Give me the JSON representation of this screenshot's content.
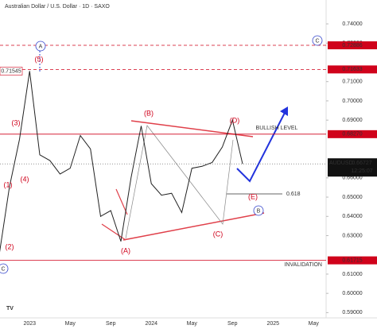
{
  "chart_data": {
    "type": "line",
    "title": "Australian Dollar / U.S. Dollar · 1D · SAXO",
    "categories": [
      null,
      null,
      null,
      "2023",
      null,
      null,
      null,
      "May",
      null,
      null,
      null,
      "Sep",
      null,
      null,
      null,
      "2024",
      null,
      null,
      null,
      "May",
      null,
      null,
      null,
      "Sep",
      null,
      null,
      null,
      "2025",
      null,
      null,
      null,
      "May",
      null
    ],
    "series": [
      {
        "name": "AUDUSD",
        "color": "#222222",
        "values": [
          0.62,
          0.655,
          0.68,
          0.7155,
          0.672,
          0.669,
          0.662,
          0.665,
          0.682,
          0.675,
          0.64,
          0.643,
          0.627,
          0.66,
          0.687,
          0.657,
          0.651,
          0.652,
          0.642,
          0.665,
          0.666,
          0.668,
          0.676,
          0.69,
          0.66727,
          null,
          null,
          null,
          null,
          null,
          null,
          null,
          null
        ]
      }
    ],
    "ylim": [
      0.58727,
      0.7524
    ],
    "yticks": [
      {
        "value": 0.74,
        "label": "0.74000"
      },
      {
        "value": 0.73,
        "label": "0.73000"
      },
      {
        "value": 0.71,
        "label": "0.71000"
      },
      {
        "value": 0.7,
        "label": "0.70000"
      },
      {
        "value": 0.69,
        "label": "0.69000"
      },
      {
        "value": 0.66,
        "label": "0.66000"
      },
      {
        "value": 0.65,
        "label": "0.65000"
      },
      {
        "value": 0.64,
        "label": "0.64000"
      },
      {
        "value": 0.63,
        "label": "0.63000"
      },
      {
        "value": 0.61,
        "label": "0.61000"
      },
      {
        "value": 0.6,
        "label": "0.60000"
      },
      {
        "value": 0.59,
        "label": "0.59000"
      }
    ],
    "levels": [
      {
        "value": 0.72886,
        "label": "0.72886",
        "color": "#d0021b",
        "style": "dashed"
      },
      {
        "value": 0.71633,
        "label": "0.71633",
        "color": "#d0021b",
        "style": "dashed"
      },
      {
        "value": 0.6827,
        "label": "0.68270",
        "color": "#d0021b",
        "style": "solid"
      },
      {
        "value": 0.61715,
        "label": "0.61715",
        "color": "#d0021b",
        "style": "solid"
      }
    ],
    "last_price": {
      "symbol": "AUDUSD",
      "value": 0.66727,
      "label": "0.66727",
      "countdown": "12:25:07"
    },
    "peak_label": {
      "value": 0.71545,
      "label": "0.71545"
    },
    "wave_labels": [
      "(1)",
      "(2)",
      "(3)",
      "(4)",
      "(5)",
      "(A)",
      "(B)",
      "(C)",
      "(D)",
      "(E)"
    ],
    "circle_labels": [
      "A",
      "B",
      "C",
      "C"
    ],
    "annotations": [
      "BULLISH LEVEL",
      "INVALIDATION",
      "0.618"
    ]
  }
}
